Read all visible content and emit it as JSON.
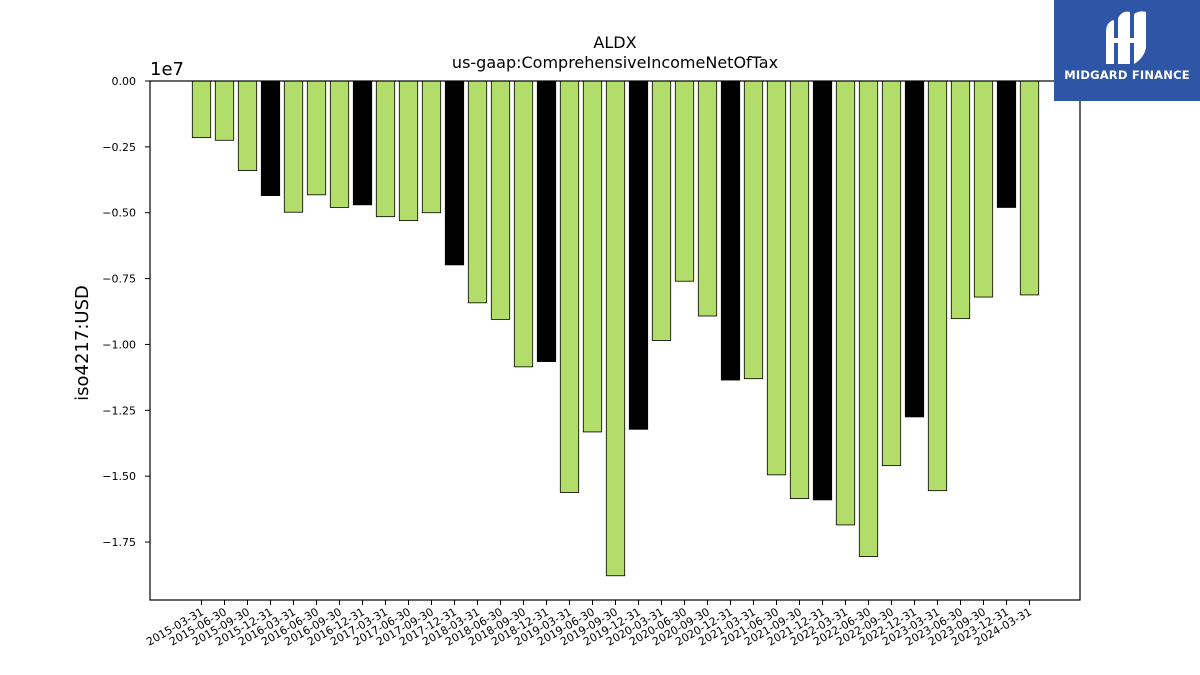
{
  "chart_data": {
    "type": "bar",
    "title": "ALDX",
    "subtitle": "us-gaap:ComprehensiveIncomeNetOfTax",
    "ylabel": "iso4217:USD",
    "xlabel": "",
    "y_offset_label": "1e7",
    "ylim": [
      -19700000,
      0
    ],
    "yticks": [
      0,
      -2500000,
      -5000000,
      -7500000,
      -10000000,
      -12500000,
      -15000000,
      -17500000
    ],
    "ytick_labels": [
      "0.00",
      "−0.25",
      "−0.50",
      "−0.75",
      "−1.00",
      "−1.25",
      "−1.50",
      "−1.75"
    ],
    "grid": false,
    "categories": [
      "2015-03-31",
      "2015-06-30",
      "2015-09-30",
      "2015-12-31",
      "2016-03-31",
      "2016-06-30",
      "2016-09-30",
      "2016-12-31",
      "2017-03-31",
      "2017-06-30",
      "2017-09-30",
      "2017-12-31",
      "2018-03-31",
      "2018-06-30",
      "2018-09-30",
      "2018-12-31",
      "2019-03-31",
      "2019-06-30",
      "2019-09-30",
      "2019-12-31",
      "2020-03-31",
      "2020-06-30",
      "2020-09-30",
      "2020-12-31",
      "2021-03-31",
      "2021-06-30",
      "2021-09-30",
      "2021-12-31",
      "2022-03-31",
      "2022-06-30",
      "2022-09-30",
      "2022-12-31",
      "2023-03-31",
      "2023-06-30",
      "2023-09-30",
      "2023-12-31",
      "2024-03-31"
    ],
    "values": [
      -2150000,
      -2250000,
      -3400000,
      -4350000,
      -4980000,
      -4320000,
      -4800000,
      -4700000,
      -5150000,
      -5300000,
      -5000000,
      -6980000,
      -8420000,
      -9050000,
      -10850000,
      -10650000,
      -15620000,
      -13320000,
      -18780000,
      -13220000,
      -9850000,
      -7600000,
      -8920000,
      -11350000,
      -11300000,
      -14950000,
      -15850000,
      -15900000,
      -16850000,
      -18050000,
      -14600000,
      -12750000,
      -15550000,
      -9020000,
      -8200000,
      -4800000,
      -8120000
    ],
    "bar_colors": [
      "#b2dd6b",
      "#b2dd6b",
      "#b2dd6b",
      "#000000",
      "#b2dd6b",
      "#b2dd6b",
      "#b2dd6b",
      "#000000",
      "#b2dd6b",
      "#b2dd6b",
      "#b2dd6b",
      "#000000",
      "#b2dd6b",
      "#b2dd6b",
      "#b2dd6b",
      "#000000",
      "#b2dd6b",
      "#b2dd6b",
      "#b2dd6b",
      "#000000",
      "#b2dd6b",
      "#b2dd6b",
      "#b2dd6b",
      "#000000",
      "#b2dd6b",
      "#b2dd6b",
      "#b2dd6b",
      "#000000",
      "#b2dd6b",
      "#b2dd6b",
      "#b2dd6b",
      "#000000",
      "#b2dd6b",
      "#b2dd6b",
      "#b2dd6b",
      "#000000",
      "#b2dd6b"
    ]
  },
  "brand": {
    "name": "MIDGARD FINANCE",
    "color": "#2f56a6"
  }
}
